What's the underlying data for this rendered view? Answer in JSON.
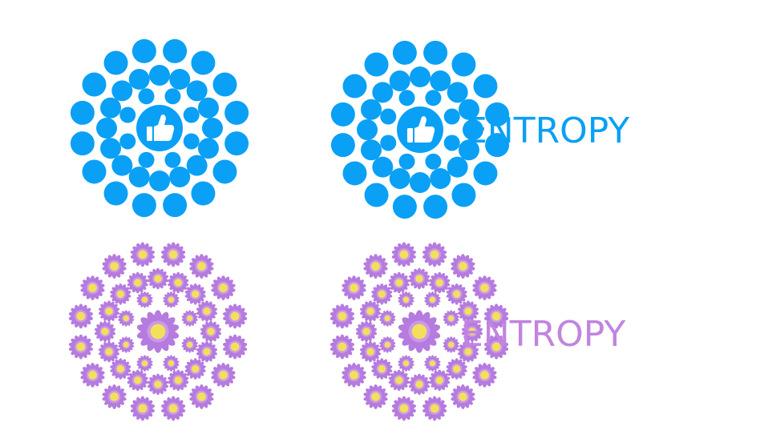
{
  "logos": [
    {
      "style": "dots",
      "color": "#0aa0f5",
      "icon": "thumbs-up-icon",
      "wordmark": ""
    },
    {
      "style": "dots",
      "color": "#0aa0f5",
      "icon": "thumbs-up-icon",
      "wordmark": "ENTROPY"
    },
    {
      "style": "flowers",
      "color": "#b57bde",
      "center_color": "#f4df5a",
      "icon": "flower-icon",
      "wordmark": ""
    },
    {
      "style": "flowers",
      "color": "#b57bde",
      "center_color": "#f4df5a",
      "icon": "flower-icon",
      "wordmark": "ENTROPY"
    }
  ],
  "wordmark_colors": {
    "dots": "#0aa0f5",
    "flowers": "#c184e0"
  }
}
